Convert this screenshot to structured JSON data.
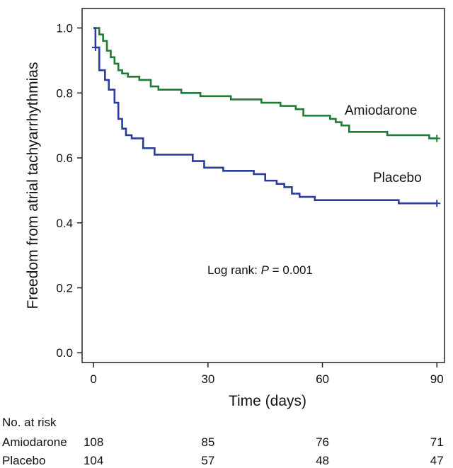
{
  "chart_data": {
    "type": "line",
    "subtype": "kaplan-meier",
    "xlabel": "Time (days)",
    "ylabel": "Freedom from atrial tachyarrhythmias",
    "xlim": [
      -3,
      92
    ],
    "ylim": [
      -0.03,
      1.06
    ],
    "xticks": [
      0,
      30,
      60,
      90
    ],
    "yticks": [
      0.0,
      0.2,
      0.4,
      0.6,
      0.8,
      1.0
    ],
    "ytick_labels": [
      "0.0",
      "0.2",
      "0.4",
      "0.6",
      "0.8",
      "1.0"
    ],
    "grid": false,
    "annotation": {
      "prefix": "Log rank: ",
      "italic": "P",
      "suffix": " = 0.001"
    },
    "series": [
      {
        "name": "Amiodarone",
        "color": "#1f7a33",
        "steps": [
          [
            0,
            1.0
          ],
          [
            1.5,
            0.98
          ],
          [
            2.5,
            0.96
          ],
          [
            3.5,
            0.93
          ],
          [
            4.5,
            0.91
          ],
          [
            5.5,
            0.89
          ],
          [
            6.5,
            0.87
          ],
          [
            7.5,
            0.86
          ],
          [
            9,
            0.85
          ],
          [
            12,
            0.84
          ],
          [
            15,
            0.82
          ],
          [
            17,
            0.81
          ],
          [
            23,
            0.8
          ],
          [
            28,
            0.79
          ],
          [
            36,
            0.78
          ],
          [
            44,
            0.77
          ],
          [
            49,
            0.76
          ],
          [
            53,
            0.75
          ],
          [
            55,
            0.73
          ],
          [
            62,
            0.72
          ],
          [
            63.5,
            0.71
          ],
          [
            65,
            0.7
          ],
          [
            67,
            0.68
          ],
          [
            77,
            0.67
          ],
          [
            88,
            0.66
          ],
          [
            90,
            0.66
          ]
        ],
        "censor": [
          [
            90,
            0.66
          ]
        ],
        "end_label": "Amiodarone"
      },
      {
        "name": "Placebo",
        "color": "#2b3d9c",
        "steps": [
          [
            0,
            1.0
          ],
          [
            0.5,
            0.94
          ],
          [
            1.5,
            0.87
          ],
          [
            3,
            0.84
          ],
          [
            4,
            0.81
          ],
          [
            5.5,
            0.77
          ],
          [
            6.5,
            0.72
          ],
          [
            7.5,
            0.69
          ],
          [
            8.5,
            0.67
          ],
          [
            10,
            0.66
          ],
          [
            13,
            0.63
          ],
          [
            16,
            0.61
          ],
          [
            21,
            0.61
          ],
          [
            26,
            0.59
          ],
          [
            29,
            0.57
          ],
          [
            34,
            0.56
          ],
          [
            38,
            0.56
          ],
          [
            42,
            0.55
          ],
          [
            45,
            0.53
          ],
          [
            48,
            0.52
          ],
          [
            50,
            0.51
          ],
          [
            52,
            0.49
          ],
          [
            54,
            0.48
          ],
          [
            57,
            0.48
          ],
          [
            58,
            0.47
          ],
          [
            70,
            0.47
          ],
          [
            80,
            0.46
          ],
          [
            90,
            0.46
          ]
        ],
        "censor": [
          [
            0.5,
            0.94
          ],
          [
            90,
            0.46
          ]
        ],
        "end_label": "Placebo"
      }
    ]
  },
  "risk_table": {
    "title": "No. at risk",
    "rows": [
      {
        "label": "Amiodarone",
        "values": [
          "108",
          "85",
          "76",
          "71"
        ]
      },
      {
        "label": "Placebo",
        "values": [
          "104",
          "57",
          "48",
          "47"
        ]
      }
    ]
  }
}
